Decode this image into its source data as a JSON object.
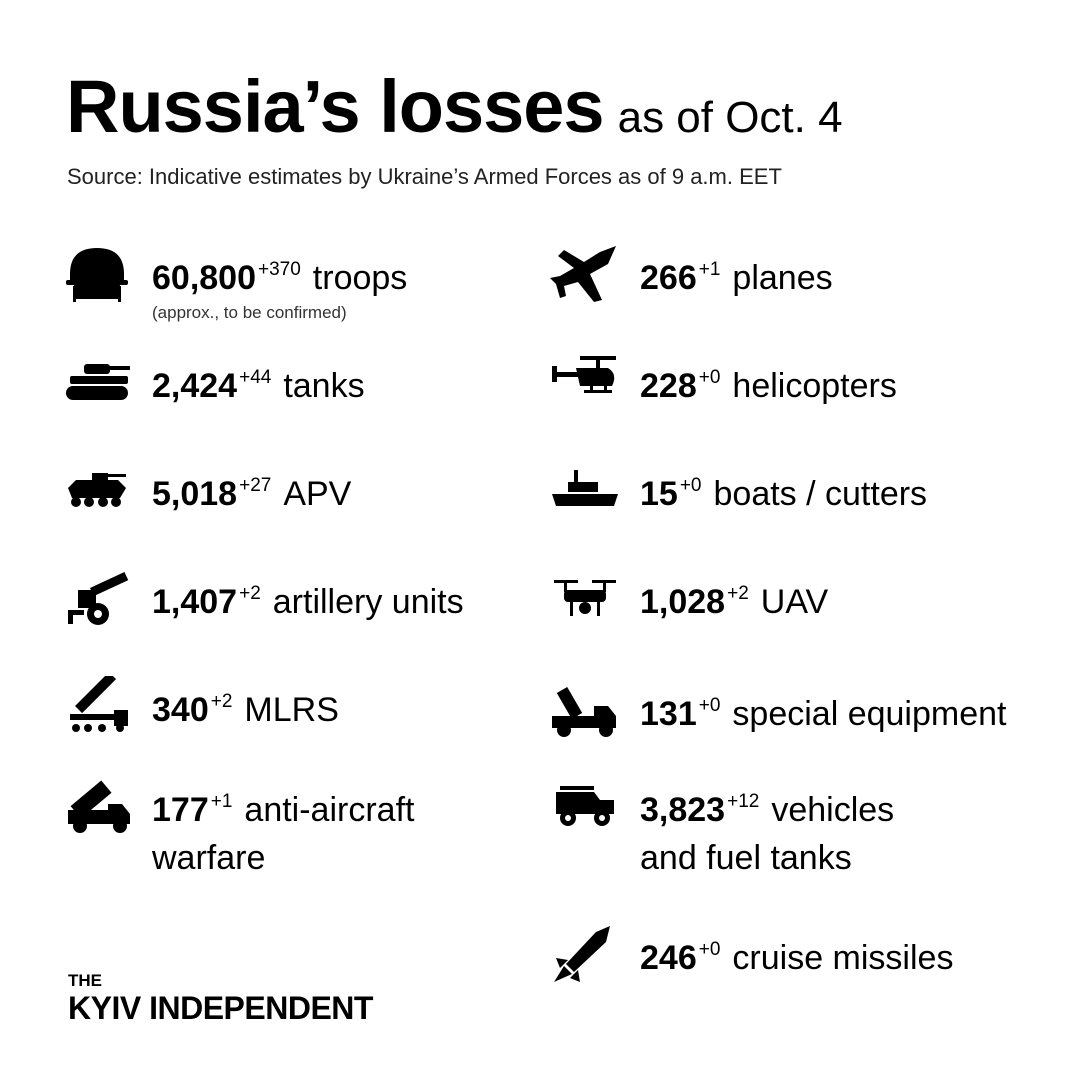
{
  "title": {
    "main": "Russia’s losses",
    "date": "as of Oct. 4"
  },
  "source": "Source: Indicative estimates by Ukraine’s Armed Forces as of 9 a.m. EET",
  "left": [
    {
      "icon": "helmet-icon",
      "value": "60,800",
      "delta": "+370",
      "label": "troops",
      "note": "(approx., to be confirmed)"
    },
    {
      "icon": "tank-icon",
      "value": "2,424",
      "delta": "+44",
      "label": "tanks"
    },
    {
      "icon": "apv-icon",
      "value": "5,018",
      "delta": "+27",
      "label": "APV"
    },
    {
      "icon": "artillery-icon",
      "value": "1,407",
      "delta": "+2",
      "label": "artillery units"
    },
    {
      "icon": "mlrs-icon",
      "value": "340",
      "delta": "+2",
      "label": "MLRS"
    },
    {
      "icon": "anti-aircraft-icon",
      "value": "177",
      "delta": "+1",
      "label": "anti-aircraft",
      "label2": "warfare"
    }
  ],
  "right": [
    {
      "icon": "plane-icon",
      "value": "266",
      "delta": "+1",
      "label": "planes"
    },
    {
      "icon": "helicopter-icon",
      "value": "228",
      "delta": "+0",
      "label": "helicopters"
    },
    {
      "icon": "boat-icon",
      "value": "15",
      "delta": "+0",
      "label": "boats / cutters"
    },
    {
      "icon": "drone-icon",
      "value": "1,028",
      "delta": "+2",
      "label": "UAV"
    },
    {
      "icon": "crane-truck-icon",
      "value": "131",
      "delta": "+0",
      "label": "special equipment"
    },
    {
      "icon": "jeep-icon",
      "value": "3,823",
      "delta": "+12",
      "label": "vehicles",
      "label2": "and fuel tanks"
    },
    {
      "icon": "missile-icon",
      "value": "246",
      "delta": "+0",
      "label": "cruise missiles"
    }
  ],
  "logo": {
    "line1": "THE",
    "line2": "KYIV INDEPENDENT"
  }
}
